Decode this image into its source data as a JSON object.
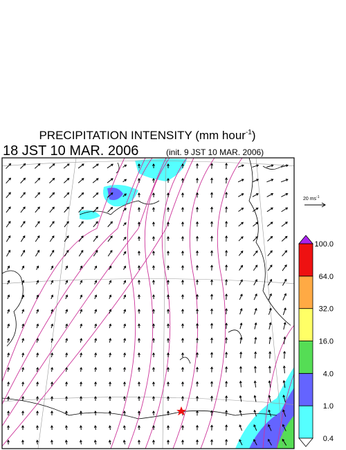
{
  "title": {
    "text": "PRECIPITATION INTENSITY (mm hour",
    "superscript": "-1",
    "close": ")"
  },
  "valid_time": "18 JST 10 MAR. 2006",
  "init_time": "(init. 9 JST 10 MAR. 2006)",
  "wind_reference": {
    "label": "20 ms",
    "superscript": "-1"
  },
  "colorbar": {
    "levels": [
      "0.4",
      "1.0",
      "4.0",
      "16.0",
      "32.0",
      "64.0",
      "100.0"
    ],
    "colors": [
      "#55ffff",
      "#6464ff",
      "#55dd55",
      "#ffff66",
      "#ffaa44",
      "#ee1111"
    ],
    "over_color": "#aa22ee",
    "under_color": "#ffffff"
  }
}
